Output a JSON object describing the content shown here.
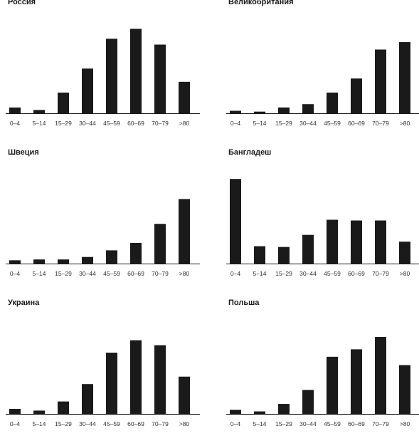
{
  "chart_data": [
    {
      "type": "bar",
      "title": "Россия",
      "categories": [
        "0–4",
        "5–14",
        "15–29",
        "30–44",
        "45–59",
        "60–69",
        "70–79",
        ">80"
      ],
      "values": [
        7,
        4,
        25,
        54,
        90,
        102,
        83,
        38
      ],
      "ylim": [
        0,
        105
      ],
      "grid": false
    },
    {
      "type": "bar",
      "title": "Великобритания",
      "categories": [
        "0–4",
        "5–14",
        "15–29",
        "30–44",
        "45–59",
        "60–69",
        "70–79",
        ">80"
      ],
      "values": [
        3,
        2,
        7,
        11,
        25,
        42,
        77,
        86
      ],
      "ylim": [
        0,
        105
      ],
      "grid": false
    },
    {
      "type": "bar",
      "title": "Швеция",
      "categories": [
        "0–4",
        "5–14",
        "15–29",
        "30–44",
        "45–59",
        "60–69",
        "70–79",
        ">80"
      ],
      "values": [
        4,
        5,
        5,
        8,
        16,
        25,
        48,
        78
      ],
      "ylim": [
        0,
        105
      ],
      "grid": false
    },
    {
      "type": "bar",
      "title": "Бангладеш",
      "categories": [
        "0–4",
        "5–14",
        "15–29",
        "30–44",
        "45–59",
        "60–69",
        "70–79",
        ">80"
      ],
      "values": [
        112,
        23,
        22,
        38,
        58,
        57,
        57,
        29
      ],
      "ylim": [
        0,
        115
      ],
      "grid": false
    },
    {
      "type": "bar",
      "title": "Украина",
      "categories": [
        "0–4",
        "5–14",
        "15–29",
        "30–44",
        "45–59",
        "60–69",
        "70–79",
        ">80"
      ],
      "values": [
        6,
        4,
        15,
        36,
        74,
        89,
        83,
        45
      ],
      "ylim": [
        0,
        105
      ],
      "grid": false
    },
    {
      "type": "bar",
      "title": "Польша",
      "categories": [
        "0–4",
        "5–14",
        "15–29",
        "30–44",
        "45–59",
        "60–69",
        "70–79",
        ">80"
      ],
      "values": [
        5,
        3,
        12,
        29,
        69,
        78,
        93,
        59
      ],
      "ylim": [
        0,
        105
      ],
      "grid": false
    }
  ]
}
